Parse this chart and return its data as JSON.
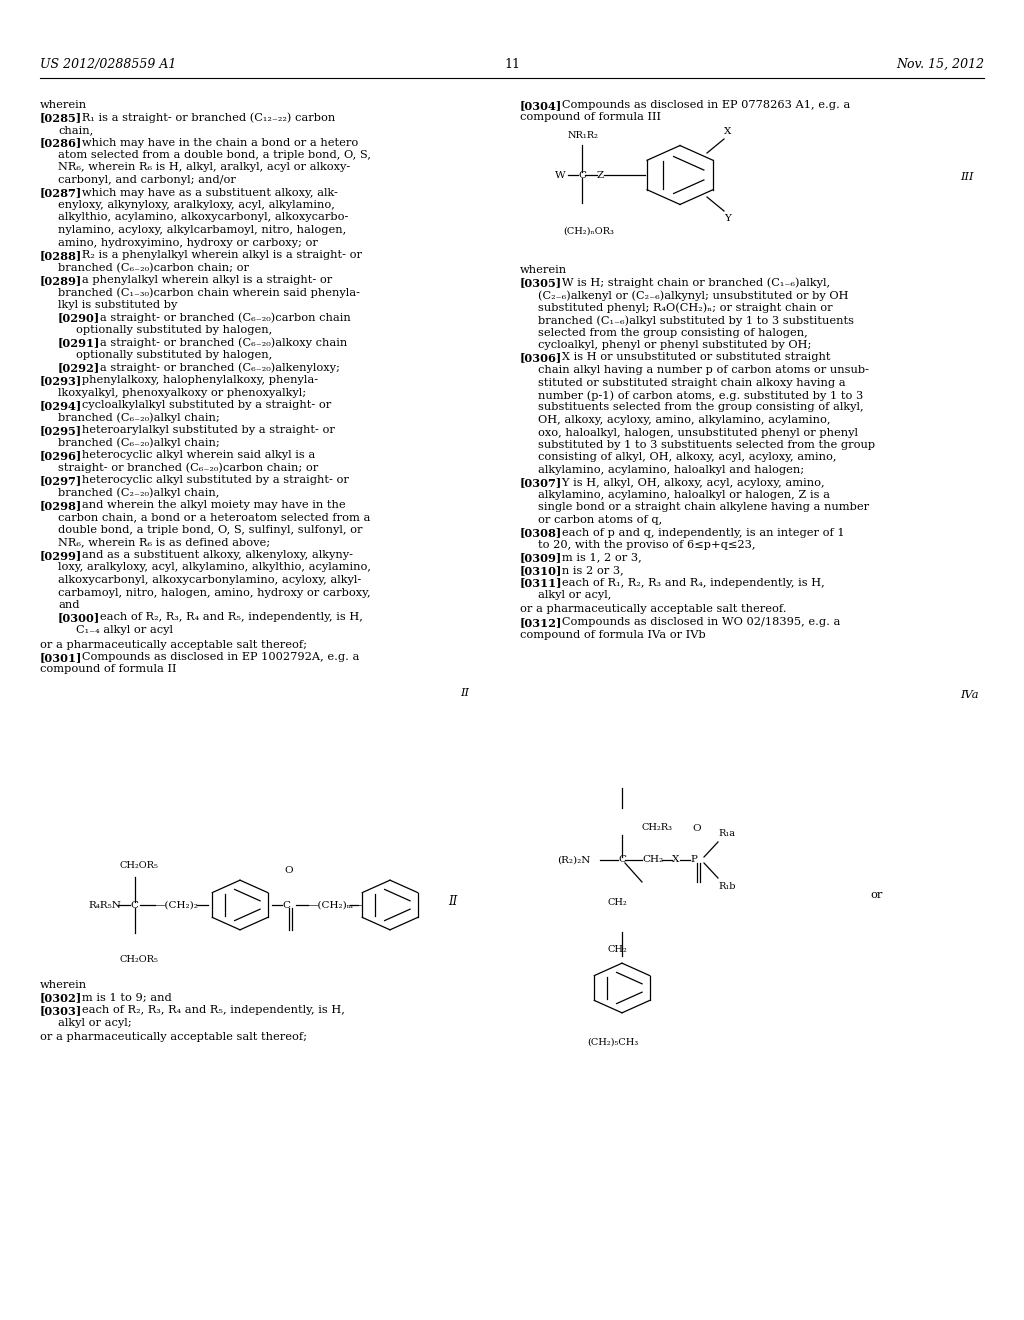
{
  "background_color": "#ffffff",
  "page_number": "11",
  "header_left": "US 2012/0288559 A1",
  "header_right": "Nov. 15, 2012"
}
